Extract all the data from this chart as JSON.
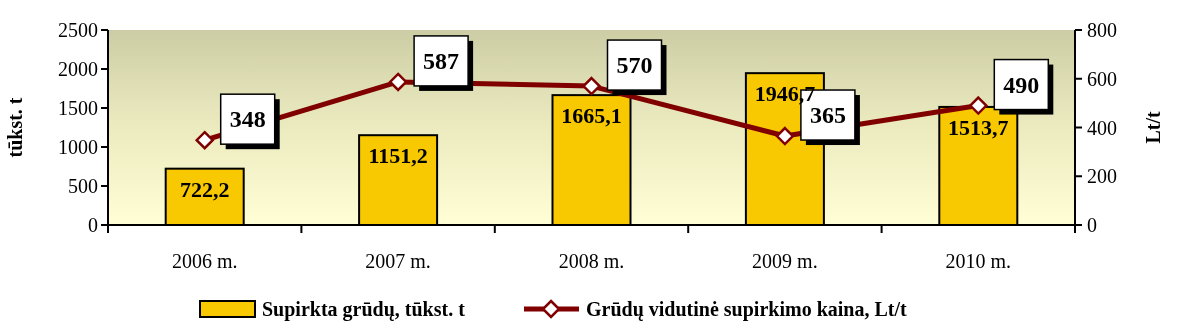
{
  "chart_data": {
    "type": "bar",
    "categories": [
      "2006 m.",
      "2007 m.",
      "2008 m.",
      "2009 m.",
      "2010 m."
    ],
    "ylabel": "tūkst. t",
    "y2label": "Lt/t",
    "ylim": [
      0,
      2500
    ],
    "yticks": [
      0,
      500,
      1000,
      1500,
      2000,
      2500
    ],
    "y2lim": [
      0,
      800
    ],
    "y2ticks": [
      0,
      200,
      400,
      600,
      800
    ],
    "data_labels": true,
    "legend": "bottom",
    "grid": false,
    "series": [
      {
        "name": "Supirkta grūdų, tūkst. t",
        "color": "#f8c800",
        "values": [
          722.2,
          1151.2,
          1665.1,
          1946.7,
          1513.7
        ],
        "value_labels": [
          "722,2",
          "1151,2",
          "1665,1",
          "1946,7",
          "1513,7"
        ]
      },
      {
        "name": "Grūdų vidutinė supirkimo kaina, Lt/t",
        "type": "line",
        "axis": "y2",
        "color": "#800000",
        "marker": "diamond",
        "values": [
          348,
          587,
          570,
          365,
          490
        ]
      }
    ]
  }
}
